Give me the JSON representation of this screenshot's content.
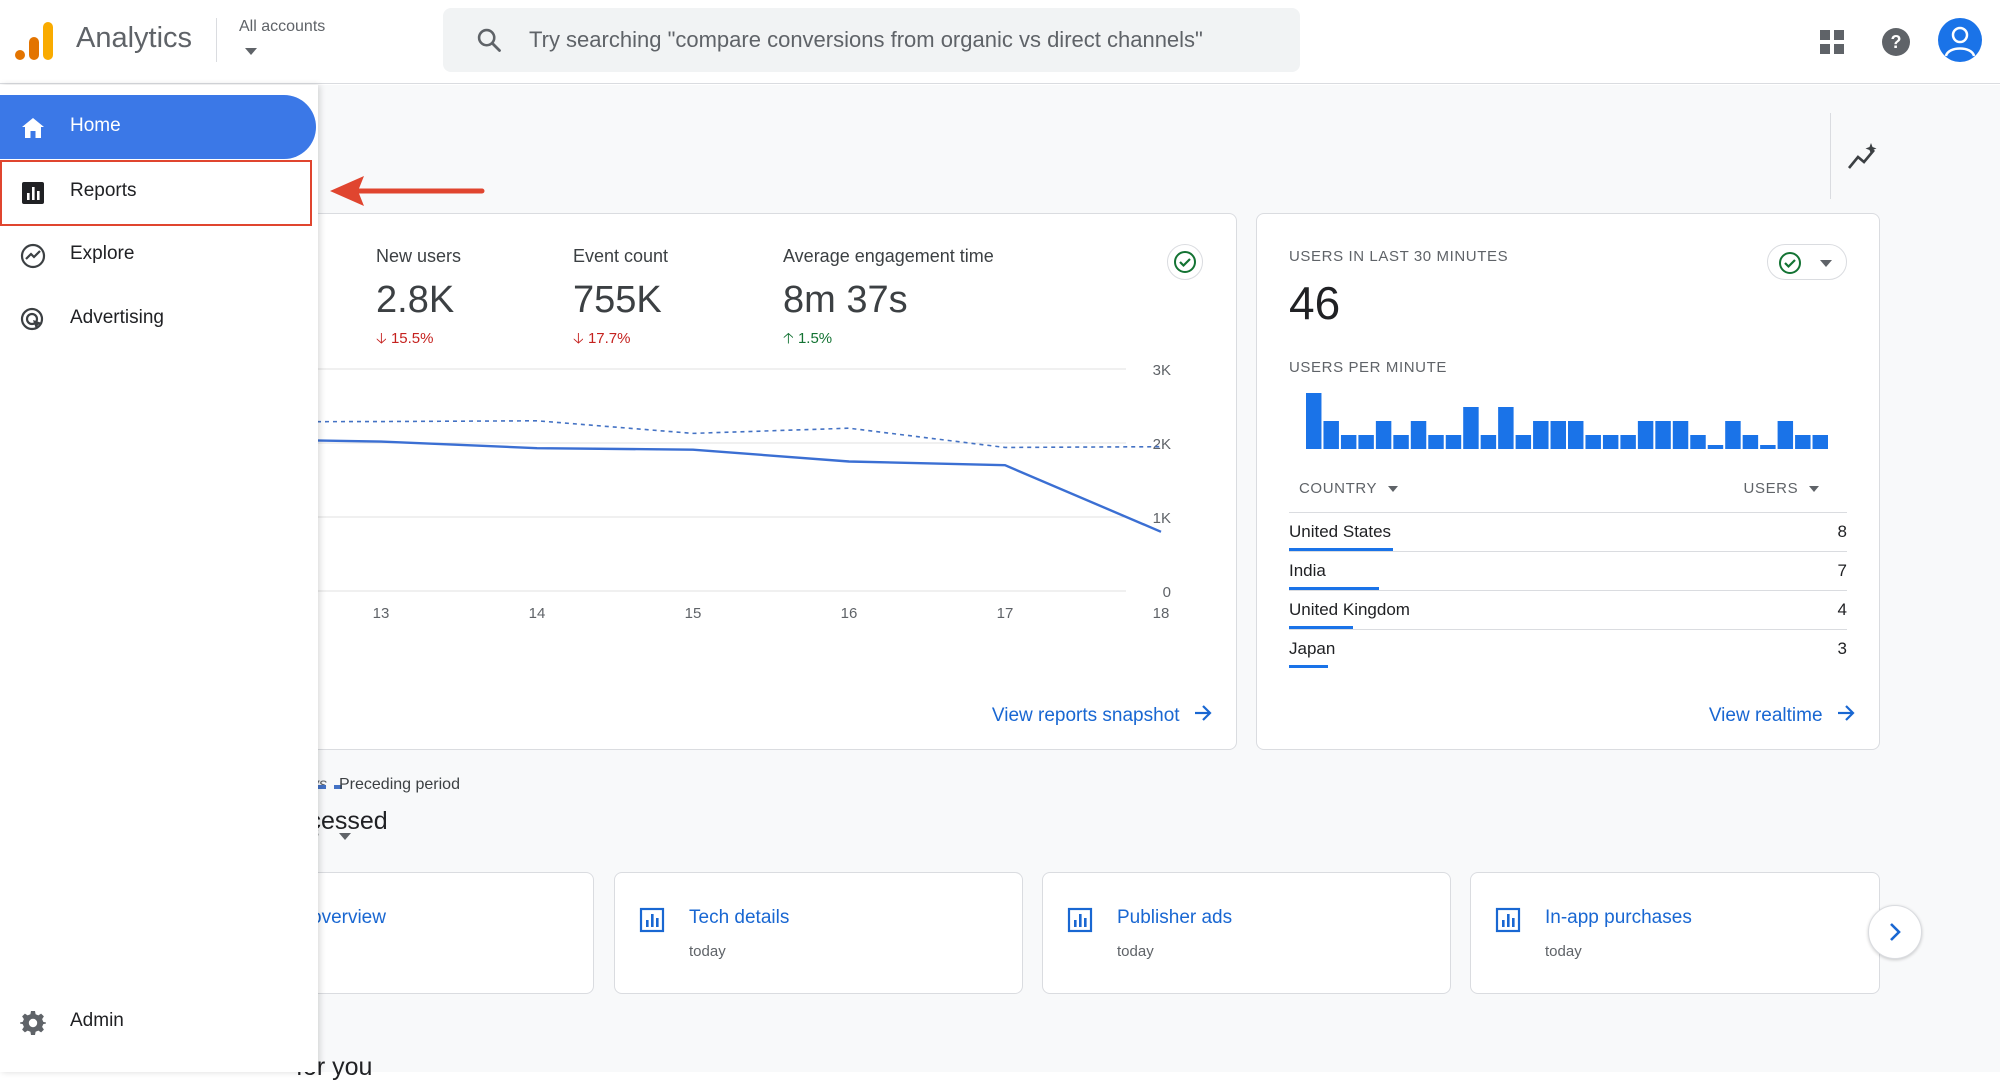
{
  "app": {
    "title": "Analytics",
    "account_label": "All accounts"
  },
  "search": {
    "placeholder": "Try searching \"compare conversions from organic vs direct channels\""
  },
  "colors": {
    "primary": "#1a73e8",
    "nav_active": "#3b78e7",
    "highlight": "#e0452f",
    "negative": "#c5221f",
    "positive": "#137333"
  },
  "sidebar": {
    "items": [
      {
        "label": "Home",
        "icon": "home-icon"
      },
      {
        "label": "Reports",
        "icon": "bar-chart-icon"
      },
      {
        "label": "Explore",
        "icon": "explore-icon"
      },
      {
        "label": "Advertising",
        "icon": "advertising-icon"
      }
    ],
    "admin": {
      "label": "Admin",
      "icon": "gear-icon"
    }
  },
  "overview": {
    "metrics": [
      {
        "label": "New users",
        "value": "2.8K",
        "change": "15.5%",
        "direction": "down"
      },
      {
        "label": "Event count",
        "value": "755K",
        "change": "17.7%",
        "direction": "down"
      },
      {
        "label": "Average engagement time",
        "value": "8m 37s",
        "change": "1.5%",
        "direction": "up"
      }
    ],
    "legend_partial": "ys",
    "legend_preceding": "Preceding period",
    "select_partial": "s",
    "link": "View reports snapshot"
  },
  "chart_data": {
    "type": "line",
    "x": [
      "13",
      "14",
      "15",
      "16",
      "17",
      "18"
    ],
    "y_ticks": [
      "3K",
      "2K",
      "1K",
      "0"
    ],
    "ylim": [
      0,
      3000
    ],
    "grid": true,
    "series": [
      {
        "values": [
          2020,
          1930,
          1910,
          1750,
          1700,
          800
        ],
        "style": "solid"
      },
      {
        "name": "Preceding period",
        "values": [
          2290,
          2300,
          2130,
          2200,
          1940,
          1950
        ],
        "style": "dashed"
      }
    ]
  },
  "realtime": {
    "title": "USERS IN LAST 30 MINUTES",
    "value": "46",
    "per_minute_label": "USERS PER MINUTE",
    "per_minute": [
      4,
      2,
      1,
      1,
      2,
      1,
      2,
      1,
      1,
      3,
      1,
      3,
      1,
      2,
      2,
      2,
      1,
      1,
      1,
      2,
      2,
      2,
      1,
      0,
      2,
      1,
      0,
      2,
      1,
      1
    ],
    "col_country": "COUNTRY",
    "col_users": "USERS",
    "rows": [
      {
        "country": "United States",
        "users": "8",
        "share": 0.37
      },
      {
        "country": "India",
        "users": "7",
        "share": 0.32
      },
      {
        "country": "United Kingdom",
        "users": "4",
        "share": 0.23
      },
      {
        "country": "Japan",
        "users": "3",
        "share": 0.14
      }
    ],
    "link": "View realtime"
  },
  "recent": {
    "title": "ccessed",
    "cards": [
      {
        "title": "overview",
        "sub": ""
      },
      {
        "title": "Tech details",
        "sub": "today"
      },
      {
        "title": "Publisher ads",
        "sub": "today"
      },
      {
        "title": "In-app purchases",
        "sub": "today"
      }
    ]
  },
  "for_you": {
    "title": "for you"
  }
}
